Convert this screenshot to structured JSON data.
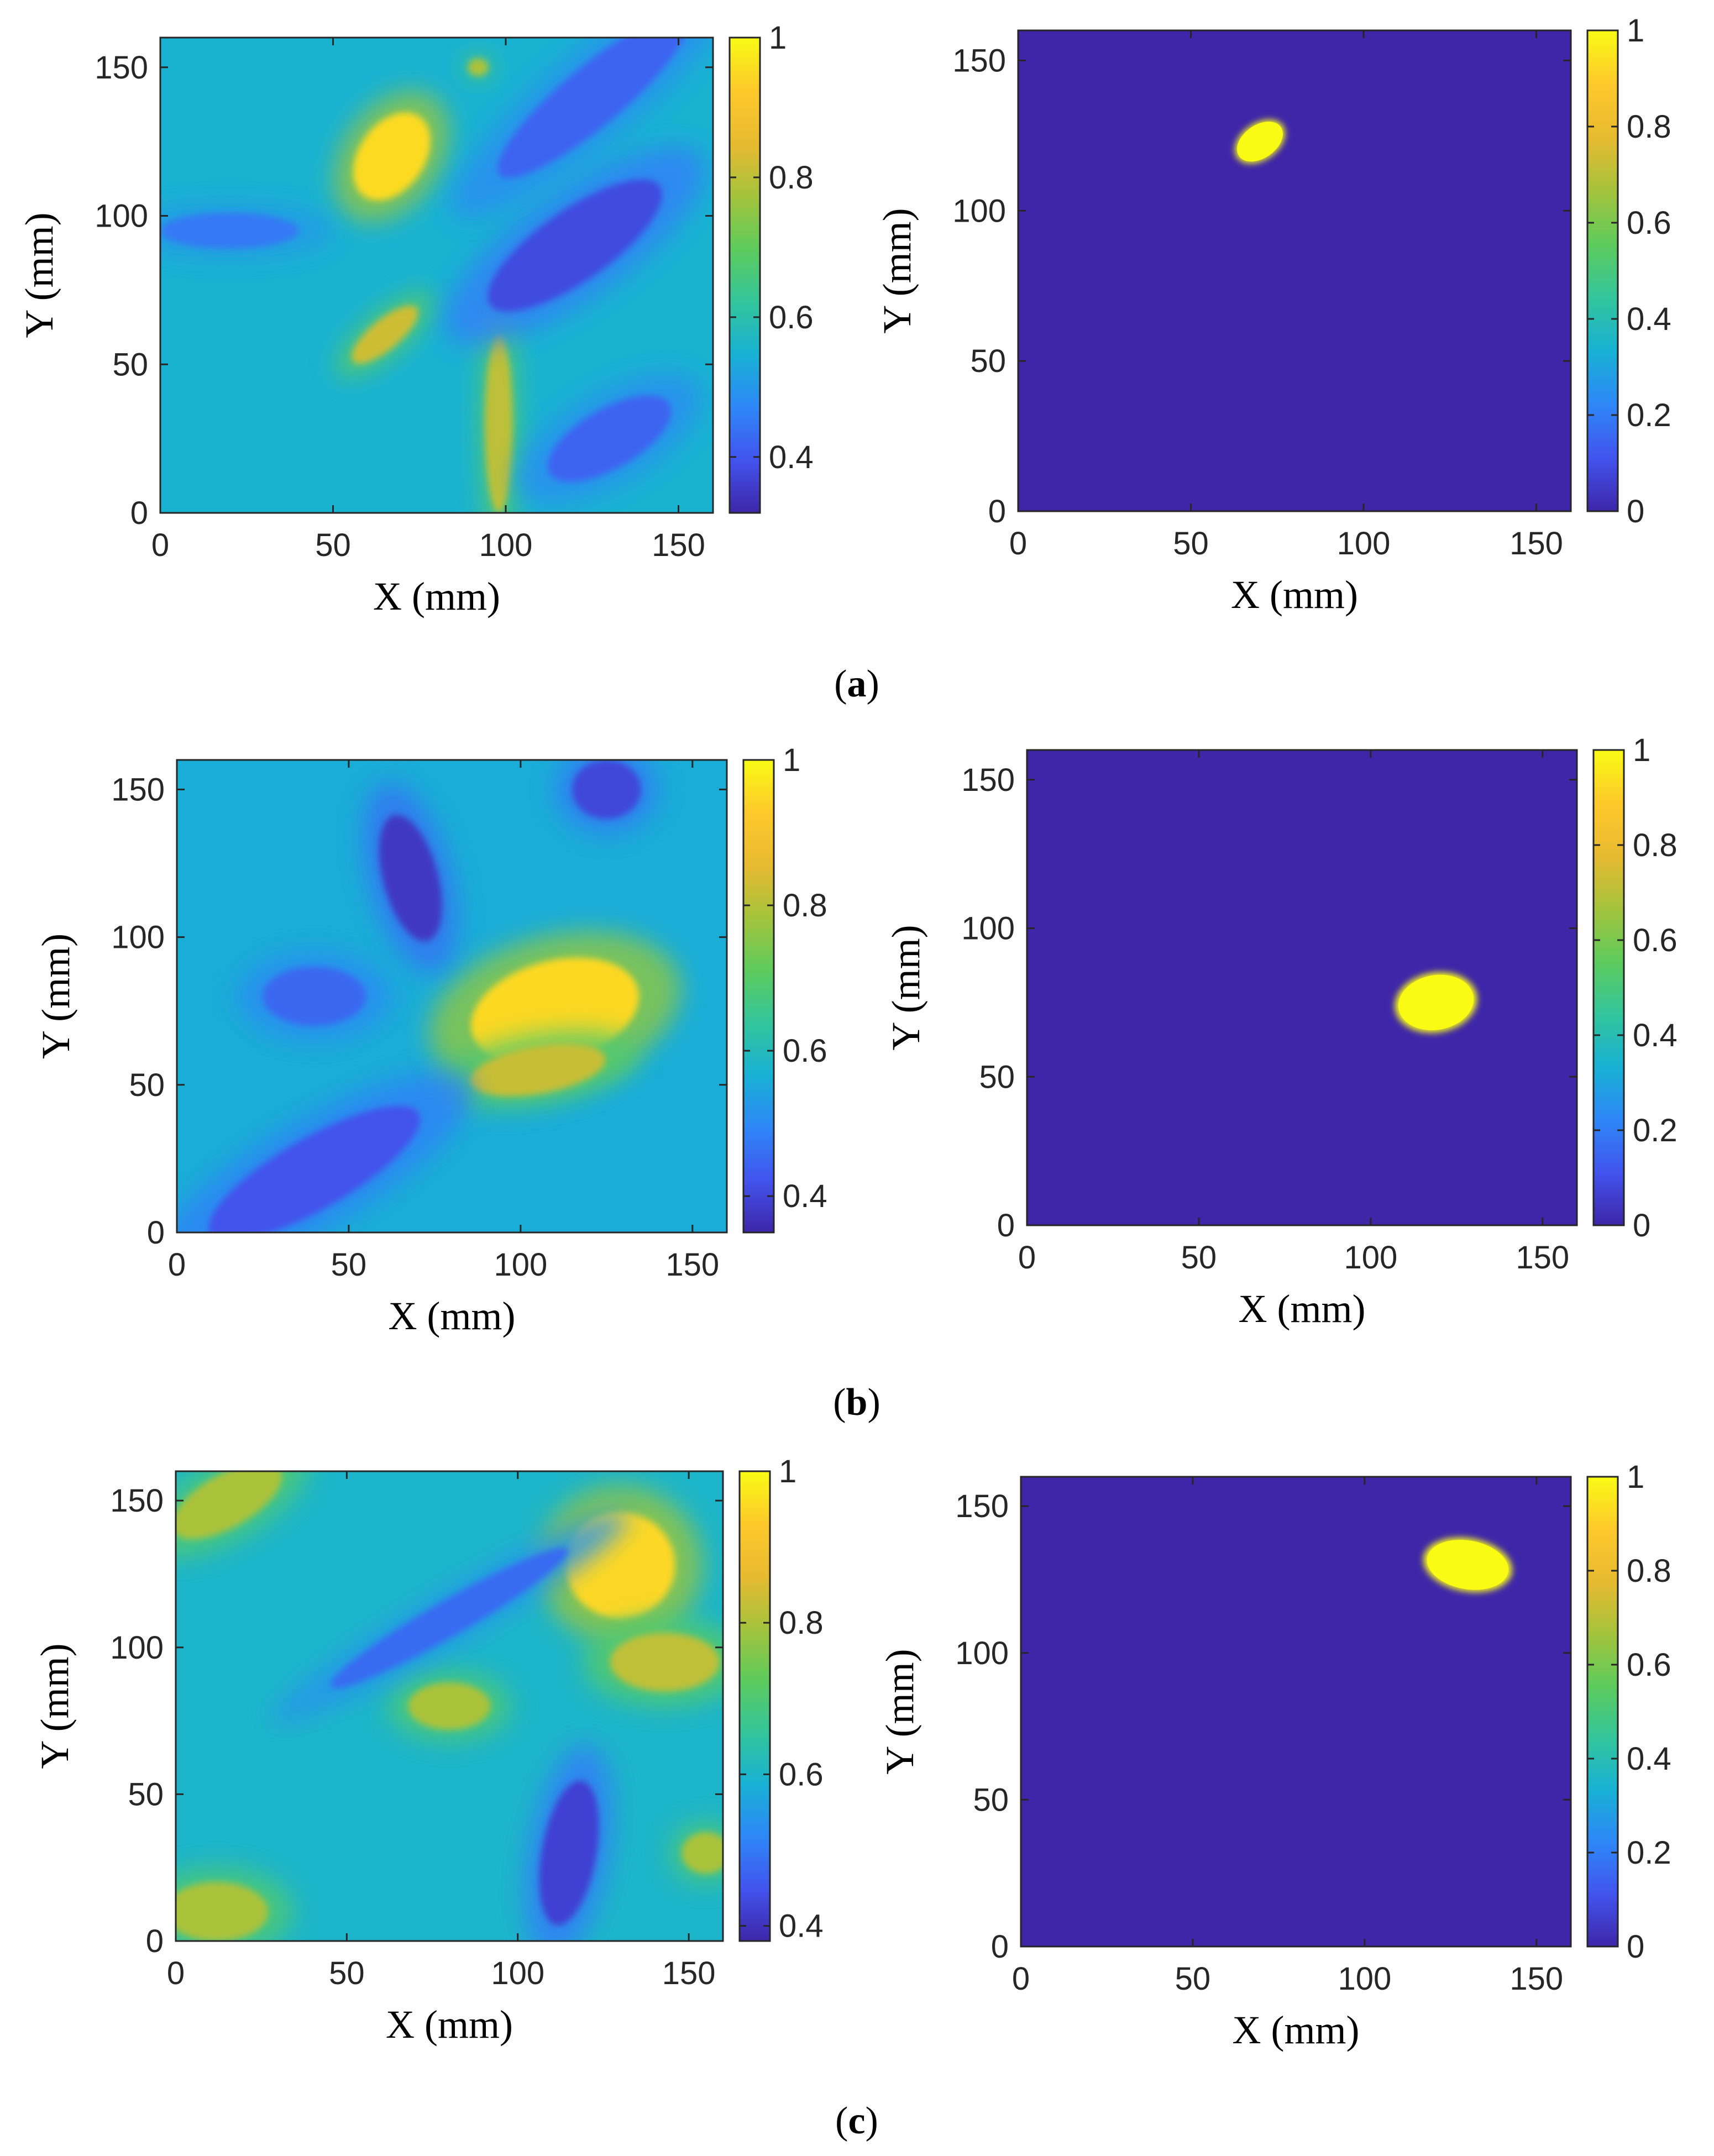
{
  "colormap": {
    "name": "parula",
    "stops": [
      "#3e26a8",
      "#4254ee",
      "#2e87f7",
      "#18b1d4",
      "#33c59b",
      "#5ecb5c",
      "#a5c33c",
      "#e8ba30",
      "#fdc92b",
      "#f9fb15"
    ]
  },
  "chart_data": [
    {
      "type": "heatmap",
      "row": "a",
      "panel": "left",
      "title": "",
      "xlabel": "X (mm)",
      "ylabel": "Y (mm)",
      "xlim": [
        0,
        160
      ],
      "ylim": [
        0,
        160
      ],
      "xticks": [
        "0",
        "50",
        "100",
        "150"
      ],
      "yticks": [
        "0",
        "50",
        "100",
        "150"
      ],
      "colorbar": {
        "range": [
          0.32,
          1
        ],
        "ticks": [
          "0.4",
          "0.6",
          "0.8",
          "1"
        ]
      },
      "background": 0.55,
      "features": [
        {
          "kind": "peak",
          "x": 67,
          "y": 120,
          "rx": 14,
          "ry": 11,
          "angle": 55,
          "value": 0.95
        },
        {
          "kind": "peak",
          "x": 92,
          "y": 150,
          "rx": 3,
          "ry": 3,
          "angle": 0,
          "value": 0.78
        },
        {
          "kind": "peak",
          "x": 65,
          "y": 60,
          "rx": 12,
          "ry": 5,
          "angle": 40,
          "value": 0.82
        },
        {
          "kind": "peak",
          "x": 98,
          "y": 30,
          "rx": 4,
          "ry": 30,
          "angle": 0,
          "value": 0.8
        },
        {
          "kind": "low",
          "x": 120,
          "y": 90,
          "rx": 30,
          "ry": 12,
          "angle": 35,
          "value": 0.38
        },
        {
          "kind": "low",
          "x": 125,
          "y": 140,
          "rx": 35,
          "ry": 10,
          "angle": 40,
          "value": 0.42
        },
        {
          "kind": "low",
          "x": 20,
          "y": 95,
          "rx": 20,
          "ry": 6,
          "angle": 0,
          "value": 0.45
        },
        {
          "kind": "low",
          "x": 130,
          "y": 25,
          "rx": 20,
          "ry": 10,
          "angle": 30,
          "value": 0.42
        }
      ]
    },
    {
      "type": "heatmap",
      "row": "a",
      "panel": "right",
      "title": "",
      "xlabel": "X (mm)",
      "ylabel": "Y (mm)",
      "xlim": [
        0,
        160
      ],
      "ylim": [
        0,
        160
      ],
      "xticks": [
        "0",
        "50",
        "100",
        "150"
      ],
      "yticks": [
        "0",
        "50",
        "100",
        "150"
      ],
      "colorbar": {
        "range": [
          0,
          1
        ],
        "ticks": [
          "0",
          "0.2",
          "0.4",
          "0.6",
          "0.8",
          "1"
        ]
      },
      "background": 0,
      "features": [
        {
          "kind": "blob",
          "x": 70,
          "y": 123,
          "rx": 8,
          "ry": 6,
          "angle": 35,
          "value": 1
        }
      ]
    },
    {
      "type": "heatmap",
      "row": "b",
      "panel": "left",
      "title": "",
      "xlabel": "X (mm)",
      "ylabel": "Y (mm)",
      "xlim": [
        0,
        160
      ],
      "ylim": [
        0,
        160
      ],
      "xticks": [
        "0",
        "50",
        "100",
        "150"
      ],
      "yticks": [
        "0",
        "50",
        "100",
        "150"
      ],
      "colorbar": {
        "range": [
          0.35,
          1
        ],
        "ticks": [
          "0.4",
          "0.6",
          "0.8",
          "1"
        ]
      },
      "background": 0.56,
      "features": [
        {
          "kind": "peak",
          "x": 110,
          "y": 75,
          "rx": 25,
          "ry": 17,
          "angle": 15,
          "value": 0.95
        },
        {
          "kind": "peak",
          "x": 105,
          "y": 55,
          "rx": 20,
          "ry": 8,
          "angle": 10,
          "value": 0.82
        },
        {
          "kind": "low",
          "x": 68,
          "y": 120,
          "rx": 8,
          "ry": 22,
          "angle": 15,
          "value": 0.38
        },
        {
          "kind": "low",
          "x": 40,
          "y": 20,
          "rx": 35,
          "ry": 12,
          "angle": 30,
          "value": 0.42
        },
        {
          "kind": "low",
          "x": 125,
          "y": 150,
          "rx": 10,
          "ry": 10,
          "angle": 0,
          "value": 0.4
        },
        {
          "kind": "low",
          "x": 40,
          "y": 80,
          "rx": 15,
          "ry": 10,
          "angle": 0,
          "value": 0.45
        }
      ]
    },
    {
      "type": "heatmap",
      "row": "b",
      "panel": "right",
      "title": "",
      "xlabel": "X (mm)",
      "ylabel": "Y (mm)",
      "xlim": [
        0,
        160
      ],
      "ylim": [
        0,
        160
      ],
      "xticks": [
        "0",
        "50",
        "100",
        "150"
      ],
      "yticks": [
        "0",
        "50",
        "100",
        "150"
      ],
      "colorbar": {
        "range": [
          0,
          1
        ],
        "ticks": [
          "0",
          "0.2",
          "0.4",
          "0.6",
          "0.8",
          "1"
        ]
      },
      "background": 0,
      "features": [
        {
          "kind": "blob",
          "x": 119,
          "y": 75,
          "rx": 12,
          "ry": 10,
          "angle": 10,
          "value": 1
        }
      ]
    },
    {
      "type": "heatmap",
      "row": "c",
      "panel": "left",
      "title": "",
      "xlabel": "X (mm)",
      "ylabel": "Y (mm)",
      "xlim": [
        0,
        160
      ],
      "ylim": [
        0,
        160
      ],
      "xticks": [
        "0",
        "50",
        "100",
        "150"
      ],
      "yticks": [
        "0",
        "50",
        "100",
        "150"
      ],
      "colorbar": {
        "range": [
          0.38,
          1
        ],
        "ticks": [
          "0.4",
          "0.6",
          "0.8",
          "1"
        ]
      },
      "background": 0.6,
      "features": [
        {
          "kind": "peak",
          "x": 130,
          "y": 128,
          "rx": 16,
          "ry": 18,
          "angle": 0,
          "value": 0.95
        },
        {
          "kind": "peak",
          "x": 143,
          "y": 95,
          "rx": 16,
          "ry": 10,
          "angle": 0,
          "value": 0.82
        },
        {
          "kind": "peak",
          "x": 80,
          "y": 80,
          "rx": 12,
          "ry": 8,
          "angle": 0,
          "value": 0.8
        },
        {
          "kind": "peak",
          "x": 15,
          "y": 150,
          "rx": 18,
          "ry": 9,
          "angle": 30,
          "value": 0.8
        },
        {
          "kind": "peak",
          "x": 12,
          "y": 10,
          "rx": 15,
          "ry": 10,
          "angle": 0,
          "value": 0.8
        },
        {
          "kind": "peak",
          "x": 155,
          "y": 30,
          "rx": 7,
          "ry": 7,
          "angle": 0,
          "value": 0.8
        },
        {
          "kind": "low",
          "x": 115,
          "y": 30,
          "rx": 8,
          "ry": 25,
          "angle": -10,
          "value": 0.42
        },
        {
          "kind": "low",
          "x": 80,
          "y": 110,
          "rx": 40,
          "ry": 6,
          "angle": 30,
          "value": 0.48
        }
      ]
    },
    {
      "type": "heatmap",
      "row": "c",
      "panel": "right",
      "title": "",
      "xlabel": "X (mm)",
      "ylabel": "Y (mm)",
      "xlim": [
        0,
        160
      ],
      "ylim": [
        0,
        160
      ],
      "xticks": [
        "0",
        "50",
        "100",
        "150"
      ],
      "yticks": [
        "0",
        "50",
        "100",
        "150"
      ],
      "colorbar": {
        "range": [
          0,
          1
        ],
        "ticks": [
          "0",
          "0.2",
          "0.4",
          "0.6",
          "0.8",
          "1"
        ]
      },
      "background": 0,
      "features": [
        {
          "kind": "blob",
          "x": 130,
          "y": 130,
          "rx": 13,
          "ry": 9,
          "angle": -10,
          "value": 1
        }
      ]
    }
  ],
  "captions": [
    {
      "open": "(",
      "letter": "a",
      "close": ")"
    },
    {
      "open": "(",
      "letter": "b",
      "close": ")"
    },
    {
      "open": "(",
      "letter": "c",
      "close": ")"
    }
  ]
}
